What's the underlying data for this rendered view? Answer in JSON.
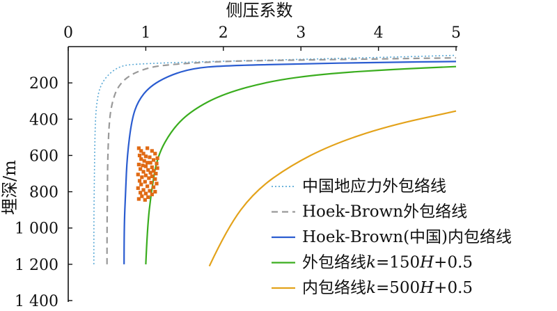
{
  "chart_data": {
    "type": "line",
    "x_axis": {
      "label": "侧压系数",
      "position": "top",
      "range": [
        0,
        5
      ],
      "ticks": [
        0,
        1,
        2,
        3,
        4,
        5
      ],
      "tick_labels": [
        "0",
        "1",
        "2",
        "3",
        "4",
        "5"
      ]
    },
    "y_axis": {
      "label": "埋深/m",
      "inverted": true,
      "range": [
        0,
        1400
      ],
      "ticks": [
        200,
        400,
        600,
        800,
        1000,
        1200,
        1400
      ],
      "tick_labels": [
        "200",
        "400",
        "600",
        "800",
        "1 000",
        "1 200",
        "1 400"
      ]
    },
    "grid": false,
    "legend_position": "bottom-right",
    "series": [
      {
        "name": "中国地应力外包络线",
        "color": "#5aa9d6",
        "dash": "dotted",
        "points": [
          [
            0.33,
            1200
          ],
          [
            0.33,
            1000
          ],
          [
            0.335,
            800
          ],
          [
            0.34,
            600
          ],
          [
            0.35,
            400
          ],
          [
            0.37,
            300
          ],
          [
            0.41,
            220
          ],
          [
            0.5,
            160
          ],
          [
            0.65,
            110
          ],
          [
            0.85,
            95
          ],
          [
            2.0,
            80
          ],
          [
            3.0,
            70
          ],
          [
            4.0,
            60
          ],
          [
            5.0,
            48
          ]
        ]
      },
      {
        "name": "Hoek-Brown外包络线",
        "color": "#999999",
        "dash": "dashed",
        "points": [
          [
            0.5,
            1200
          ],
          [
            0.5,
            1000
          ],
          [
            0.505,
            800
          ],
          [
            0.51,
            600
          ],
          [
            0.53,
            400
          ],
          [
            0.57,
            300
          ],
          [
            0.64,
            220
          ],
          [
            0.78,
            160
          ],
          [
            1.0,
            120
          ],
          [
            1.25,
            100
          ],
          [
            2.0,
            80
          ],
          [
            3.0,
            74
          ],
          [
            4.0,
            68
          ],
          [
            5.0,
            62
          ]
        ]
      },
      {
        "name": "Hoek-Brown(中国)内包络线",
        "color": "#2a5cd0",
        "dash": "solid",
        "points": [
          [
            0.72,
            1200
          ],
          [
            0.72,
            1000
          ],
          [
            0.74,
            800
          ],
          [
            0.76,
            600
          ],
          [
            0.82,
            400
          ],
          [
            0.9,
            300
          ],
          [
            1.05,
            220
          ],
          [
            1.3,
            160
          ],
          [
            1.6,
            120
          ],
          [
            2.0,
            105
          ],
          [
            3.0,
            95
          ],
          [
            4.0,
            87
          ],
          [
            5.0,
            82
          ]
        ]
      },
      {
        "name": "外包络线k=150H+0.5",
        "color": "#3aad1e",
        "dash": "solid",
        "points": [
          [
            1.0,
            1200
          ],
          [
            1.02,
            1000
          ],
          [
            1.07,
            800
          ],
          [
            1.15,
            600
          ],
          [
            1.35,
            450
          ],
          [
            1.6,
            350
          ],
          [
            2.0,
            260
          ],
          [
            2.6,
            190
          ],
          [
            3.3,
            150
          ],
          [
            4.2,
            125
          ],
          [
            5.0,
            110
          ]
        ]
      },
      {
        "name": "内包络线k=500H+0.5",
        "color": "#e3a21a",
        "dash": "solid",
        "points": [
          [
            1.82,
            1210
          ],
          [
            2.05,
            1000
          ],
          [
            2.4,
            800
          ],
          [
            2.85,
            660
          ],
          [
            3.4,
            540
          ],
          [
            4.1,
            440
          ],
          [
            5.0,
            355
          ]
        ]
      }
    ],
    "scatter": {
      "color": "#e06a14",
      "points": [
        [
          0.91,
          560
        ],
        [
          1.02,
          560
        ],
        [
          0.94,
          575
        ],
        [
          1.08,
          575
        ],
        [
          0.97,
          590
        ],
        [
          1.12,
          590
        ],
        [
          0.92,
          600
        ],
        [
          1.0,
          605
        ],
        [
          1.05,
          610
        ],
        [
          1.15,
          615
        ],
        [
          0.94,
          620
        ],
        [
          1.1,
          625
        ],
        [
          0.98,
          630
        ],
        [
          1.02,
          640
        ],
        [
          1.06,
          640
        ],
        [
          1.14,
          645
        ],
        [
          0.91,
          650
        ],
        [
          0.96,
          655
        ],
        [
          1.0,
          660
        ],
        [
          1.08,
          665
        ],
        [
          1.15,
          670
        ],
        [
          0.93,
          675
        ],
        [
          1.03,
          680
        ],
        [
          1.1,
          685
        ],
        [
          0.97,
          690
        ],
        [
          1.06,
          695
        ],
        [
          1.13,
          700
        ],
        [
          0.9,
          705
        ],
        [
          1.0,
          710
        ],
        [
          1.08,
          715
        ],
        [
          0.95,
          720
        ],
        [
          1.04,
          725
        ],
        [
          1.12,
          730
        ],
        [
          0.92,
          740
        ],
        [
          0.99,
          745
        ],
        [
          1.07,
          750
        ],
        [
          1.14,
          755
        ],
        [
          0.94,
          760
        ],
        [
          1.02,
          770
        ],
        [
          1.1,
          775
        ],
        [
          0.9,
          780
        ],
        [
          0.97,
          790
        ],
        [
          1.05,
          795
        ],
        [
          1.12,
          800
        ],
        [
          0.93,
          805
        ],
        [
          1.0,
          810
        ],
        [
          1.08,
          815
        ],
        [
          0.95,
          825
        ],
        [
          1.03,
          830
        ],
        [
          0.91,
          840
        ],
        [
          0.99,
          845
        ]
      ]
    },
    "legend": [
      {
        "color": "#5aa9d6",
        "dash": "dotted",
        "text": "中国地应力外包络线"
      },
      {
        "color": "#999999",
        "dash": "dashed",
        "text": "Hoek-Brown外包络线"
      },
      {
        "color": "#2a5cd0",
        "dash": "solid",
        "text": "Hoek-Brown(中国)内包络线"
      },
      {
        "color": "#3aad1e",
        "dash": "solid",
        "text_prefix": "外包络线",
        "formula": "k=150H+0.5"
      },
      {
        "color": "#e3a21a",
        "dash": "solid",
        "text_prefix": "内包络线",
        "formula": "k=500H+0.5"
      }
    ]
  }
}
